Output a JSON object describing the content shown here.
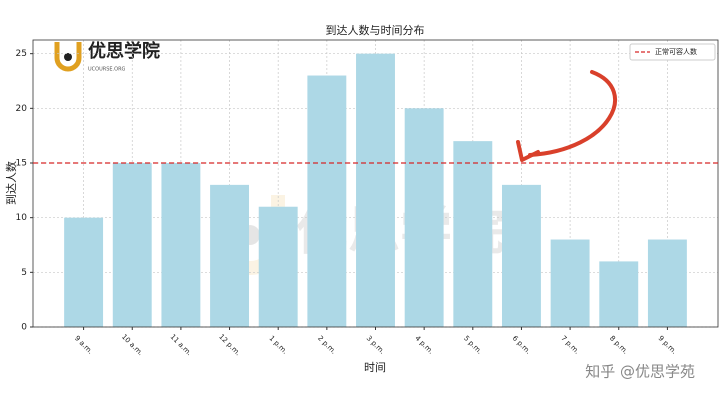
{
  "chart_data": {
    "type": "bar",
    "title": "到达人数与时间分布",
    "xlabel": "时间",
    "ylabel": "到达人数",
    "categories": [
      "9 a.m.",
      "10 a.m.",
      "11 a.m.",
      "12 p.m.",
      "1 p.m.",
      "2 p.m.",
      "3 p.m.",
      "4 p.m.",
      "5 p.m.",
      "6 p.m.",
      "7 p.m.",
      "8 p.m.",
      "9 p.m."
    ],
    "values": [
      10,
      15,
      15,
      13,
      11,
      23,
      25,
      20,
      17,
      13,
      8,
      6,
      8
    ],
    "color": "#add8e6",
    "ylim": [
      0,
      26.25
    ],
    "yticks": [
      0,
      5,
      10,
      15,
      20,
      25
    ],
    "grid": true,
    "reference_lines": [
      {
        "name": "正常可容人数",
        "value": 15,
        "color": "#d62728"
      }
    ],
    "legend": "upper right"
  },
  "watermark": {
    "logo": "优思学院",
    "logo_sub": "UCOURSE.ORG",
    "source": "知乎 @优思学苑"
  }
}
